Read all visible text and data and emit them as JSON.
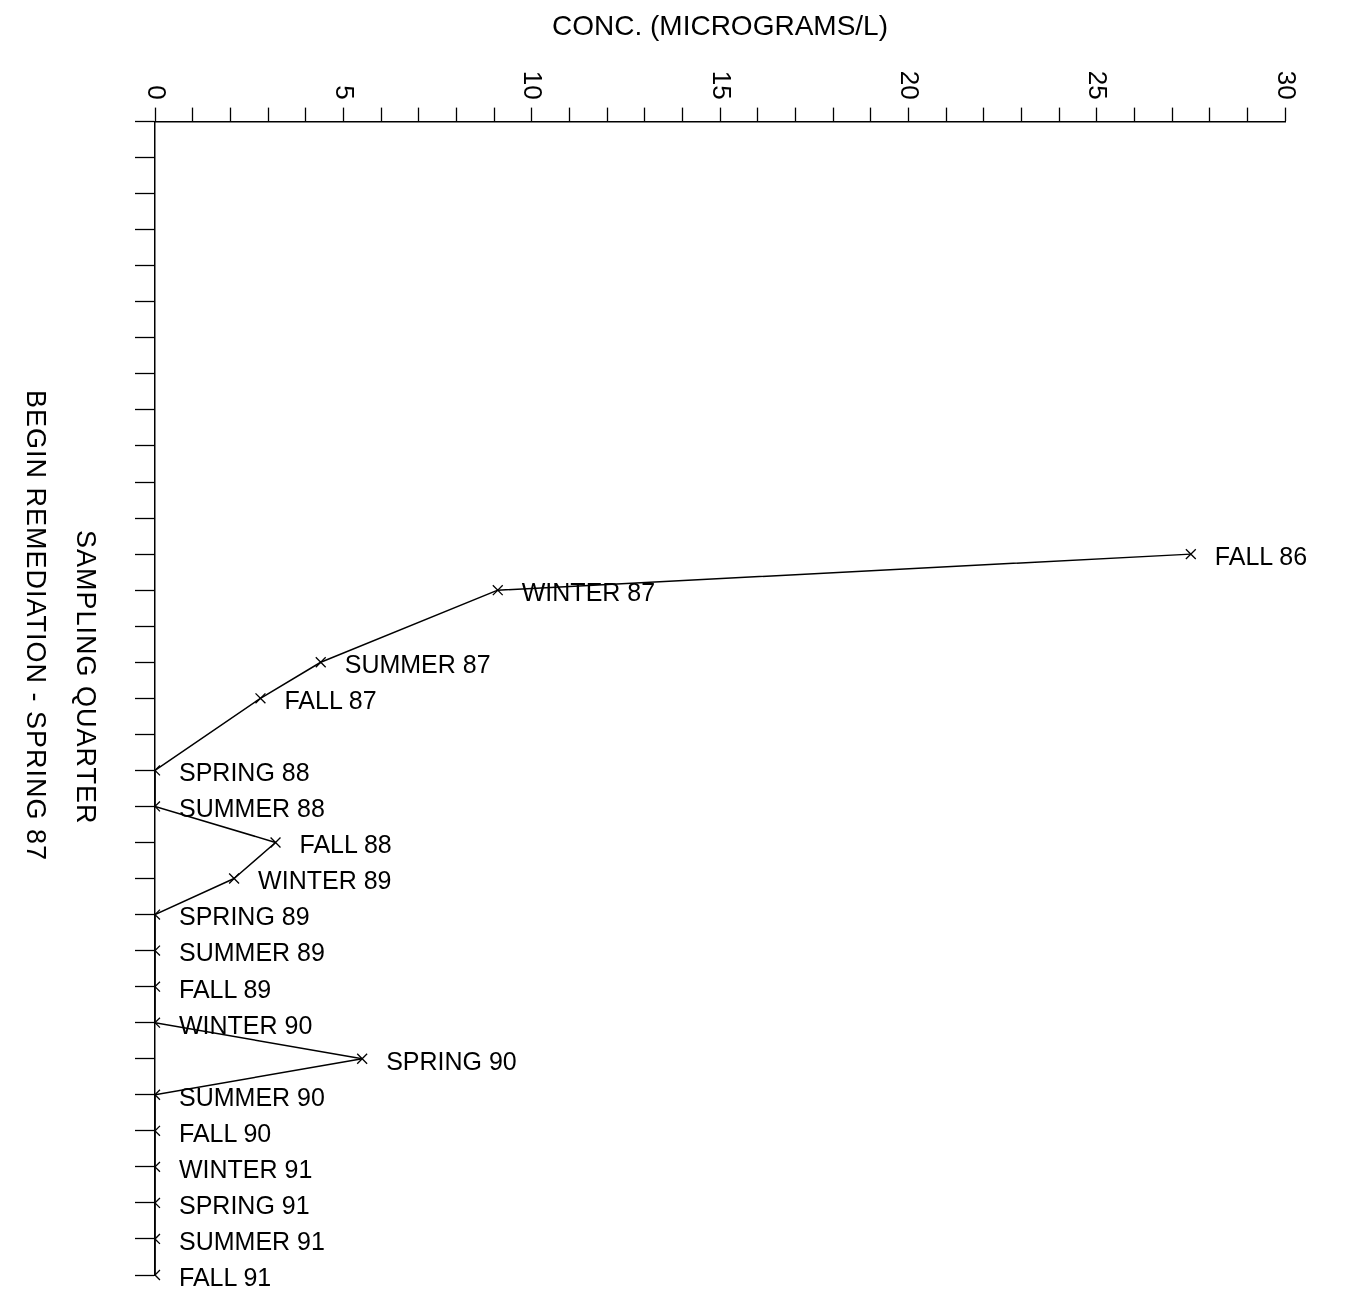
{
  "chart_data": {
    "type": "line",
    "orientation": "horizontal",
    "xlabel": "CONC. (MICROGRAMS/L)",
    "ylabel": "SAMPLING QUARTER",
    "annotations": [
      "BEGIN REMEDIATION - SPRING 87"
    ],
    "categories": [
      null,
      null,
      null,
      null,
      null,
      null,
      null,
      null,
      null,
      null,
      null,
      null,
      "FALL 86",
      "WINTER 87",
      null,
      "SUMMER 87",
      "FALL 87",
      null,
      "SPRING 88",
      "SUMMER 88",
      "FALL 88",
      "WINTER 89",
      "SPRING 89",
      "SUMMER 89",
      "FALL 89",
      "WINTER 90",
      "SPRING 90",
      "SUMMER 90",
      "FALL 90",
      "WINTER 91",
      "SPRING 91",
      "SUMMER 91",
      "FALL 91"
    ],
    "series": [
      {
        "color": "#000000",
        "values": [
          null,
          null,
          null,
          null,
          null,
          null,
          null,
          null,
          null,
          null,
          null,
          null,
          27.5,
          9.1,
          null,
          4.4,
          2.8,
          null,
          0,
          0,
          3.2,
          2.1,
          0,
          0,
          0,
          0,
          5.5,
          0,
          0,
          0,
          0,
          0,
          0
        ]
      }
    ],
    "xlim": [
      0,
      30
    ],
    "xticks": [
      0,
      {
        "value": 1,
        "label": null
      },
      {
        "value": 2,
        "label": null
      },
      {
        "value": 3,
        "label": null
      },
      {
        "value": 4,
        "label": null
      },
      5,
      {
        "value": 6,
        "label": null
      },
      {
        "value": 7,
        "label": null
      },
      {
        "value": 8,
        "label": null
      },
      {
        "value": 9,
        "label": null
      },
      10,
      {
        "value": 11,
        "label": null
      },
      {
        "value": 12,
        "label": null
      },
      {
        "value": 13,
        "label": null
      },
      {
        "value": 14,
        "label": null
      },
      15,
      {
        "value": 16,
        "label": null
      },
      {
        "value": 17,
        "label": null
      },
      {
        "value": 18,
        "label": null
      },
      {
        "value": 19,
        "label": null
      },
      20,
      {
        "value": 21,
        "label": null
      },
      {
        "value": 22,
        "label": null
      },
      {
        "value": 23,
        "label": null
      },
      {
        "value": 24,
        "label": null
      },
      25,
      {
        "value": 26,
        "label": null
      },
      {
        "value": 27,
        "label": null
      },
      {
        "value": 28,
        "label": null
      },
      {
        "value": 29,
        "label": null
      },
      30
    ],
    "tick_labels": "x",
    "grid": false,
    "legend": false,
    "marker": "cross",
    "line_style": "solid"
  }
}
